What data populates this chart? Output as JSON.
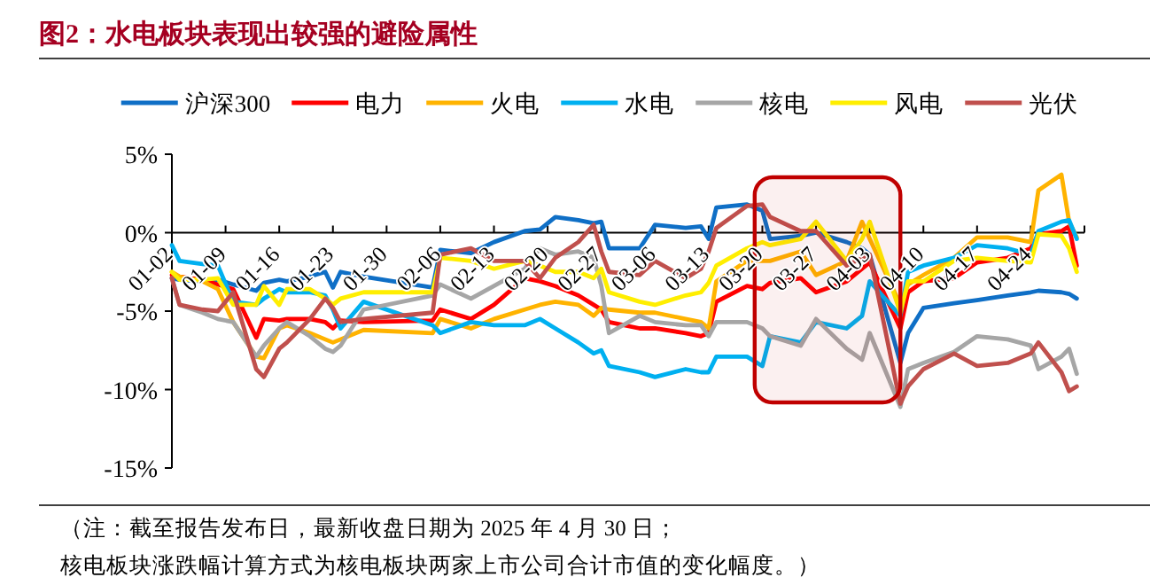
{
  "chart_data": {
    "type": "line",
    "title": "图2：水电板块表现出较强的避险属性",
    "x": [
      "2025-01-02",
      "2025-01-03",
      "2025-01-06",
      "2025-01-08",
      "2025-01-10",
      "2025-01-13",
      "2025-01-14",
      "2025-01-16",
      "2025-01-17",
      "2025-01-20",
      "2025-01-22",
      "2025-01-23",
      "2025-01-24",
      "2025-01-27",
      "2025-02-05",
      "2025-02-06",
      "2025-02-10",
      "2025-02-13",
      "2025-02-17",
      "2025-02-19",
      "2025-02-21",
      "2025-02-24",
      "2025-02-26",
      "2025-02-27",
      "2025-02-28",
      "2025-03-04",
      "2025-03-06",
      "2025-03-10",
      "2025-03-12",
      "2025-03-13",
      "2025-03-14",
      "2025-03-18",
      "2025-03-20",
      "2025-03-21",
      "2025-03-25",
      "2025-03-27",
      "2025-03-31",
      "2025-04-02",
      "2025-04-03",
      "2025-04-07",
      "2025-04-08",
      "2025-04-10",
      "2025-04-14",
      "2025-04-17",
      "2025-04-21",
      "2025-04-24",
      "2025-04-25",
      "2025-04-28",
      "2025-04-29",
      "2025-04-30"
    ],
    "series": [
      {
        "name": "沪深300",
        "color": "#0f6fc6",
        "values": [
          -2.9,
          -3.0,
          -3.1,
          -3.0,
          -3.3,
          -3.7,
          -3.2,
          -3.0,
          -3.1,
          -2.8,
          -2.5,
          -3.5,
          -2.5,
          -2.8,
          -3.5,
          -1.1,
          -1.3,
          -0.6,
          0.1,
          0.2,
          1.0,
          0.8,
          0.6,
          0.7,
          -1.0,
          -1.0,
          0.5,
          0.3,
          0.4,
          -0.4,
          1.6,
          1.8,
          1.4,
          -0.4,
          -0.2,
          0.0,
          -0.6,
          -1.0,
          -1.4,
          -8.3,
          -6.4,
          -4.8,
          -4.5,
          -4.3,
          -4.0,
          -3.8,
          -3.7,
          -3.8,
          -3.9,
          -4.2
        ]
      },
      {
        "name": "电力",
        "color": "#ff0000",
        "values": [
          -2.7,
          -2.8,
          -3.0,
          -3.3,
          -3.6,
          -6.7,
          -5.5,
          -5.6,
          -5.5,
          -5.5,
          -5.7,
          -6.1,
          -5.6,
          -5.7,
          -5.6,
          -4.9,
          -5.5,
          -4.6,
          -2.9,
          -3.1,
          -3.4,
          -4.0,
          -4.6,
          -4.9,
          -5.7,
          -6.1,
          -6.1,
          -6.4,
          -6.6,
          -6.4,
          -4.4,
          -3.4,
          -3.6,
          -3.2,
          -2.9,
          -3.8,
          -3.1,
          -2.3,
          -1.9,
          -6.1,
          -3.8,
          -3.1,
          -2.9,
          -1.9,
          -1.6,
          -1.0,
          -0.1,
          0.1,
          0.4,
          -2.1
        ]
      },
      {
        "name": "火电",
        "color": "#ffb300",
        "values": [
          -2.5,
          -2.8,
          -3.1,
          -3.6,
          -5.7,
          -7.9,
          -8.0,
          -6.1,
          -5.9,
          -6.4,
          -6.8,
          -7.0,
          -6.8,
          -6.2,
          -6.4,
          -5.5,
          -6.1,
          -5.5,
          -4.9,
          -4.6,
          -4.4,
          -4.6,
          -5.3,
          -4.8,
          -4.9,
          -5.1,
          -5.1,
          -5.5,
          -5.7,
          -6.1,
          -3.1,
          -1.8,
          -1.8,
          -1.8,
          -1.2,
          -2.7,
          -1.8,
          0.7,
          -0.4,
          -4.6,
          -3.3,
          -2.7,
          -1.6,
          -0.3,
          -0.3,
          -0.6,
          2.7,
          3.7,
          0.7,
          -0.3
        ]
      },
      {
        "name": "水电",
        "color": "#00b0f0",
        "values": [
          -0.8,
          -1.8,
          -2.0,
          -2.1,
          -4.4,
          -4.6,
          -4.2,
          -3.6,
          -3.8,
          -3.8,
          -4.0,
          -4.9,
          -6.1,
          -4.4,
          -5.9,
          -6.4,
          -5.7,
          -5.9,
          -5.9,
          -5.5,
          -6.1,
          -7.0,
          -7.7,
          -7.5,
          -8.5,
          -8.9,
          -9.2,
          -8.7,
          -8.9,
          -8.9,
          -7.9,
          -7.9,
          -8.5,
          -6.6,
          -7.0,
          -5.7,
          -6.1,
          -5.3,
          -3.1,
          -5.3,
          -2.5,
          -2.1,
          -1.6,
          -0.8,
          -1.0,
          -1.4,
          0.1,
          0.7,
          0.8,
          -0.4
        ]
      },
      {
        "name": "核电",
        "color": "#a6a6a6",
        "values": [
          -2.9,
          -4.6,
          -5.1,
          -5.5,
          -5.7,
          -7.9,
          -7.2,
          -6.1,
          -5.7,
          -6.6,
          -7.4,
          -7.6,
          -7.2,
          -4.9,
          -4.0,
          -3.3,
          -4.2,
          -3.4,
          -2.3,
          -1.0,
          -1.4,
          -1.2,
          -1.6,
          -3.4,
          -6.4,
          -5.3,
          -5.7,
          -5.9,
          -5.9,
          -6.6,
          -5.7,
          -5.7,
          -6.1,
          -6.6,
          -7.2,
          -5.5,
          -7.4,
          -8.1,
          -6.4,
          -11.1,
          -8.7,
          -8.3,
          -7.6,
          -6.6,
          -6.8,
          -7.2,
          -8.7,
          -7.9,
          -7.4,
          -9.0
        ]
      },
      {
        "name": "风电",
        "color": "#ffee00",
        "values": [
          -2.5,
          -3.0,
          -3.0,
          -2.9,
          -4.6,
          -4.6,
          -3.4,
          -4.6,
          -3.6,
          -3.6,
          -4.2,
          -4.6,
          -4.2,
          -3.8,
          -3.8,
          -1.6,
          -1.8,
          -2.3,
          -1.8,
          -2.1,
          -2.5,
          -2.5,
          -2.9,
          -2.3,
          -3.8,
          -4.4,
          -4.6,
          -4.0,
          -3.8,
          -3.2,
          -2.1,
          -1.0,
          -0.6,
          -0.8,
          -0.4,
          0.7,
          -1.8,
          -0.4,
          0.7,
          -5.1,
          -3.1,
          -3.1,
          -1.8,
          -1.6,
          -1.8,
          -1.9,
          -0.1,
          -0.2,
          -1.0,
          -2.5
        ]
      },
      {
        "name": "光伏",
        "color": "#c0504d",
        "values": [
          -2.9,
          -4.6,
          -4.9,
          -5.0,
          -3.8,
          -8.7,
          -9.2,
          -7.4,
          -7.0,
          -5.5,
          -4.2,
          -4.8,
          -5.7,
          -5.5,
          -5.1,
          -1.4,
          -1.0,
          -1.8,
          -1.8,
          -2.9,
          -1.6,
          -0.6,
          0.5,
          -1.2,
          -2.5,
          -2.7,
          -1.8,
          -2.9,
          -2.3,
          -1.2,
          0.3,
          1.7,
          1.8,
          1.0,
          0.1,
          0.1,
          -2.1,
          -1.6,
          -1.4,
          -10.9,
          -9.8,
          -8.7,
          -7.7,
          -8.5,
          -8.3,
          -7.7,
          -7.0,
          -8.9,
          -10.1,
          -9.8
        ]
      }
    ],
    "xlim": [
      "2025-01-02",
      "2025-05-01"
    ],
    "xticks": [
      {
        "value": "2025-01-02",
        "label": "01-02"
      },
      {
        "value": "2025-01-09",
        "label": "01-09"
      },
      {
        "value": "2025-01-16",
        "label": "01-16"
      },
      {
        "value": "2025-01-23",
        "label": "01-23"
      },
      {
        "value": "2025-01-30",
        "label": "01-30"
      },
      {
        "value": "2025-02-06",
        "label": "02-06"
      },
      {
        "value": "2025-02-13",
        "label": "02-13"
      },
      {
        "value": "2025-02-20",
        "label": "02-20"
      },
      {
        "value": "2025-02-27",
        "label": "02-27"
      },
      {
        "value": "2025-03-06",
        "label": "03-06"
      },
      {
        "value": "2025-03-13",
        "label": "03-13"
      },
      {
        "value": "2025-03-20",
        "label": "03-20"
      },
      {
        "value": "2025-03-27",
        "label": "03-27"
      },
      {
        "value": "2025-04-03",
        "label": "04-03"
      },
      {
        "value": "2025-04-10",
        "label": "04-10"
      },
      {
        "value": "2025-04-17",
        "label": "04-17"
      },
      {
        "value": "2025-04-24",
        "label": "04-24"
      },
      {
        "value": "2025-05-01",
        "label": null
      }
    ],
    "ylim": [
      -15,
      5
    ],
    "yticks": [
      {
        "value": 5,
        "label": "5%"
      },
      {
        "value": 0,
        "label": "0%"
      },
      {
        "value": -5,
        "label": "-5%"
      },
      {
        "value": -10,
        "label": "-10%"
      },
      {
        "value": -15,
        "label": "-15%"
      }
    ],
    "bands": [
      {
        "axis": "x",
        "from": "2025-03-19",
        "to": "2025-04-07",
        "color": "#c00000"
      }
    ],
    "legend": "top",
    "grid": false,
    "marker": "none",
    "line_style": "solid",
    "annotations": [
      "（注：截至报告发布日，最新收盘日期为 2025 年 4 月 30 日；",
      "核电板块涨跌幅计算方式为核电板块两家上市公司合计市值的变化幅度。）"
    ]
  }
}
